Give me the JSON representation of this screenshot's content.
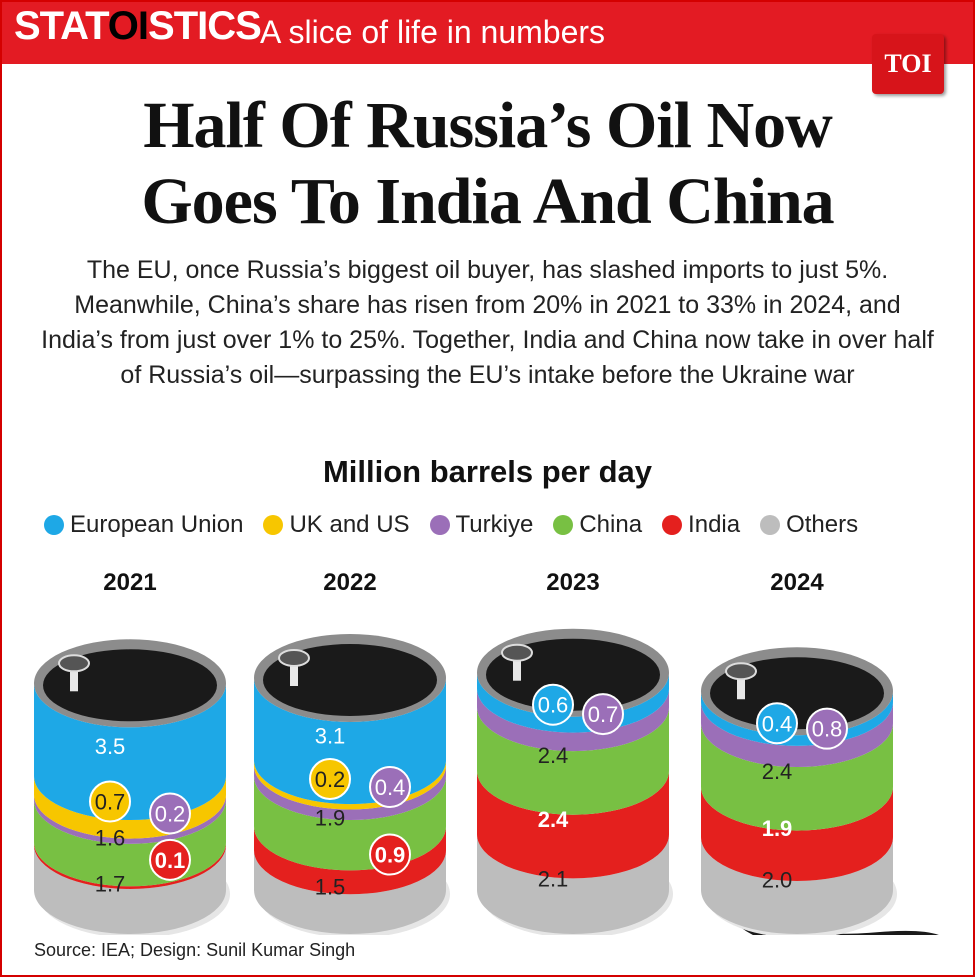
{
  "brand": {
    "pre": "STAT",
    "mid": "OI",
    "post": "STICS",
    "tagline": "A slice of life in numbers"
  },
  "logo_text": "TOI",
  "headline": [
    "Half Of Russia’s Oil Now",
    "Goes To India And China"
  ],
  "intro": "The EU, once Russia’s biggest oil buyer, has slashed imports to just 5%. Meanwhile, China’s share has risen from 20% in 2021 to 33% in 2024, and India’s from just over 1% to 25%. Together, India and China now take in over half of Russia’s oil—surpassing the EU’s intake before the Ukraine war",
  "source": "Source: IEA; Design: Sunil Kumar Singh",
  "colors": {
    "eu": "#1ea8e6",
    "uk_us": "#f7c600",
    "turkiye": "#9b6fb8",
    "china": "#78c043",
    "india": "#e4201e",
    "others": "#bdbdbd",
    "oil": "#1a1a1a",
    "rim": "#8c8c8c"
  },
  "chart_data": {
    "type": "bar",
    "stacked": true,
    "title": "Million barrels per day",
    "categories": [
      "2021",
      "2022",
      "2023",
      "2024"
    ],
    "series": [
      {
        "name": "European Union",
        "key": "eu",
        "values": [
          3.5,
          3.1,
          0.6,
          0.4
        ],
        "labels": [
          "3.5",
          "3.1",
          "0.6",
          "0.4"
        ]
      },
      {
        "name": "UK and US",
        "key": "uk_us",
        "values": [
          0.7,
          0.2,
          0,
          0
        ],
        "labels": [
          "0.7",
          "0.2",
          "",
          ""
        ]
      },
      {
        "name": "Turkiye",
        "key": "turkiye",
        "values": [
          0.2,
          0.4,
          0.7,
          0.8
        ],
        "labels": [
          "0.2",
          "0.4",
          "0.7",
          "0.8"
        ]
      },
      {
        "name": "China",
        "key": "china",
        "values": [
          1.6,
          1.9,
          2.4,
          2.4
        ],
        "labels": [
          "1.6",
          "1.9",
          "2.4",
          "2.4"
        ]
      },
      {
        "name": "India",
        "key": "india",
        "values": [
          0.1,
          0.9,
          2.4,
          1.9
        ],
        "labels": [
          "0.1",
          "0.9",
          "2.4",
          "1.9"
        ]
      },
      {
        "name": "Others",
        "key": "others",
        "values": [
          1.7,
          1.5,
          2.1,
          2.0
        ],
        "labels": [
          "1.7",
          "1.5",
          "2.1",
          "2.0"
        ]
      }
    ],
    "legend": "top"
  }
}
